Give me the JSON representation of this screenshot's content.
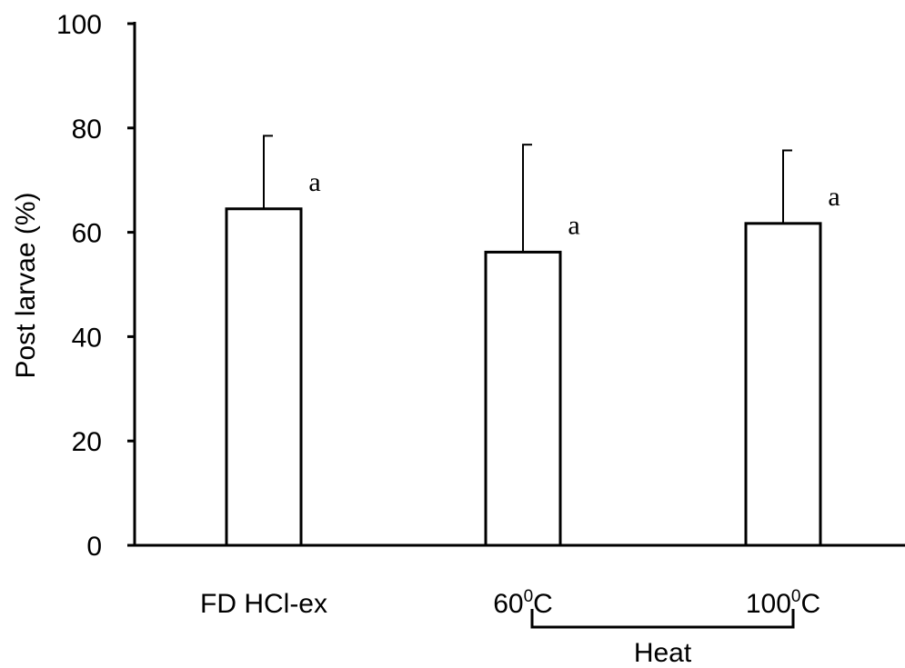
{
  "chart_data": {
    "type": "bar",
    "ylabel": "Post larvae (%)",
    "ylim": [
      0,
      100
    ],
    "yticks": [
      0,
      20,
      40,
      60,
      80,
      100
    ],
    "categories": [
      {
        "base": "FD HCl-ex",
        "sup": "",
        "tail": ""
      },
      {
        "base": "60",
        "sup": "0",
        "tail": "C"
      },
      {
        "base": "100",
        "sup": "0",
        "tail": "C"
      }
    ],
    "values": [
      64.5,
      56.2,
      61.7
    ],
    "errors": [
      14.0,
      20.6,
      14.0
    ],
    "significance": [
      "a",
      "a",
      "a"
    ],
    "group_bracket": {
      "label": "Heat",
      "from": 1,
      "to": 2
    },
    "colors": {
      "bar_fill": "#ffffff",
      "stroke": "#000000"
    }
  }
}
